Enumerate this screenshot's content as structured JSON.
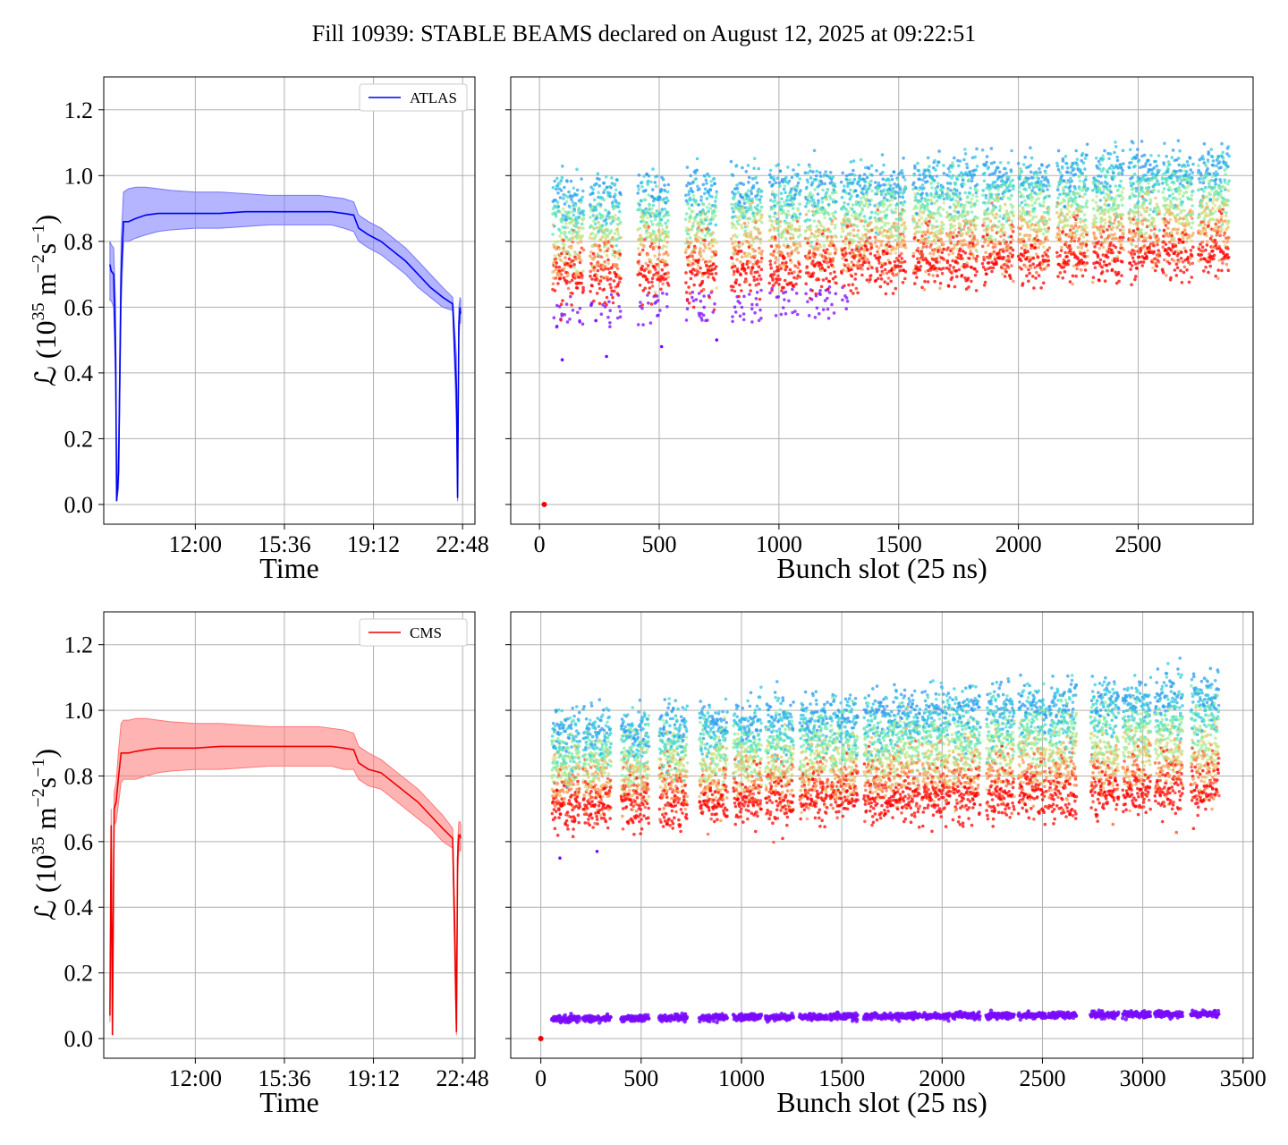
{
  "figure_title": "Fill 10939: STABLE BEAMS declared on August 12, 2025 at 09:22:51",
  "ylabel_main": "ℒ (10",
  "ylabel_exp1": "35",
  "ylabel_mid": " m",
  "ylabel_exp2": "−2",
  "ylabel_mid2": "s",
  "ylabel_exp3": "−1",
  "ylabel_end": ")",
  "colors": {
    "atlas": "#0000ee",
    "atlas_band": "#7777ff",
    "cms": "#ee0000",
    "cms_band": "#ff7777"
  },
  "chart_data": [
    {
      "id": "atlas-time",
      "type": "line",
      "legend": "ATLAS",
      "xlabel": "Time",
      "xticks": [
        "12:00",
        "15:36",
        "19:12",
        "22:48"
      ],
      "xtick_hours": [
        12.0,
        15.6,
        19.2,
        22.8
      ],
      "xlim_hours": [
        8.3,
        23.3
      ],
      "yticks": [
        "0.0",
        "0.2",
        "0.4",
        "0.6",
        "0.8",
        "1.0",
        "1.2"
      ],
      "ylim": [
        -0.06,
        1.3
      ],
      "series": [
        {
          "name": "mean",
          "x": [
            8.55,
            8.6,
            8.7,
            8.78,
            8.82,
            8.9,
            9.0,
            9.1,
            9.3,
            9.6,
            10.0,
            10.5,
            11.0,
            12.0,
            13.0,
            14.0,
            15.0,
            16.0,
            17.0,
            17.5,
            18.0,
            18.4,
            18.6,
            19.0,
            19.5,
            20.0,
            20.5,
            21.0,
            21.5,
            22.0,
            22.4,
            22.55,
            22.6,
            22.65,
            22.7,
            22.72
          ],
          "y": [
            0.73,
            0.71,
            0.7,
            0.45,
            0.01,
            0.1,
            0.7,
            0.86,
            0.86,
            0.87,
            0.88,
            0.885,
            0.885,
            0.885,
            0.885,
            0.89,
            0.89,
            0.89,
            0.89,
            0.89,
            0.885,
            0.88,
            0.84,
            0.82,
            0.8,
            0.77,
            0.74,
            0.7,
            0.66,
            0.63,
            0.61,
            0.35,
            0.02,
            0.55,
            0.6,
            0.58
          ]
        },
        {
          "name": "upper",
          "y": [
            0.8,
            0.79,
            0.78,
            0.6,
            0.02,
            0.2,
            0.8,
            0.95,
            0.96,
            0.965,
            0.965,
            0.96,
            0.955,
            0.95,
            0.95,
            0.945,
            0.94,
            0.94,
            0.94,
            0.935,
            0.93,
            0.92,
            0.88,
            0.86,
            0.84,
            0.81,
            0.78,
            0.74,
            0.7,
            0.66,
            0.63,
            0.45,
            0.03,
            0.6,
            0.63,
            0.62
          ]
        },
        {
          "name": "lower",
          "y": [
            0.62,
            0.62,
            0.6,
            0.35,
            0.01,
            0.05,
            0.6,
            0.8,
            0.8,
            0.81,
            0.82,
            0.83,
            0.835,
            0.84,
            0.84,
            0.845,
            0.85,
            0.85,
            0.85,
            0.85,
            0.84,
            0.83,
            0.8,
            0.78,
            0.76,
            0.73,
            0.7,
            0.66,
            0.63,
            0.6,
            0.59,
            0.25,
            0.01,
            0.5,
            0.57,
            0.55
          ]
        }
      ]
    },
    {
      "id": "atlas-bunch",
      "type": "scatter",
      "xlabel": "Bunch slot (25 ns)",
      "xticks": [
        0,
        500,
        1000,
        1500,
        2000,
        2500
      ],
      "xlim": [
        -120,
        2980
      ],
      "yticks": [
        "0.0",
        "0.2",
        "0.4",
        "0.6",
        "0.8",
        "1.0",
        "1.2"
      ],
      "ylim": [
        -0.06,
        1.3
      ],
      "trains_start": [
        55,
        210,
        410,
        610,
        800,
        960,
        1110,
        1260,
        1400,
        1560,
        1700,
        1850,
        2000,
        2160,
        2310,
        2460,
        2600,
        2750
      ],
      "train_length": 130,
      "band_low_start": 0.68,
      "band_low_end": 0.76,
      "band_high_start": 0.93,
      "band_high_end": 1.03,
      "outlier_low": [
        0.44,
        0.45,
        0.48,
        0.5
      ],
      "origin_point": [
        20,
        0.0
      ]
    },
    {
      "id": "cms-time",
      "type": "line",
      "legend": "CMS",
      "xlabel": "Time",
      "xticks": [
        "12:00",
        "15:36",
        "19:12",
        "22:48"
      ],
      "xtick_hours": [
        12.0,
        15.6,
        19.2,
        22.8
      ],
      "xlim_hours": [
        8.3,
        23.3
      ],
      "yticks": [
        "0.0",
        "0.2",
        "0.4",
        "0.6",
        "0.8",
        "1.0",
        "1.2"
      ],
      "ylim": [
        -0.06,
        1.3
      ],
      "series": [
        {
          "name": "mean",
          "x": [
            8.55,
            8.6,
            8.65,
            8.72,
            8.8,
            8.9,
            9.0,
            9.1,
            9.3,
            9.6,
            10.0,
            10.5,
            11.0,
            12.0,
            13.0,
            14.0,
            15.0,
            16.0,
            17.0,
            17.5,
            18.0,
            18.4,
            18.6,
            19.0,
            19.5,
            20.0,
            20.5,
            21.0,
            21.5,
            22.0,
            22.4,
            22.5,
            22.55,
            22.6,
            22.65,
            22.7,
            22.72
          ],
          "y": [
            0.07,
            0.65,
            0.01,
            0.7,
            0.72,
            0.8,
            0.87,
            0.87,
            0.87,
            0.875,
            0.88,
            0.885,
            0.885,
            0.885,
            0.89,
            0.89,
            0.89,
            0.89,
            0.89,
            0.89,
            0.885,
            0.88,
            0.84,
            0.82,
            0.81,
            0.78,
            0.75,
            0.72,
            0.68,
            0.64,
            0.61,
            0.25,
            0.02,
            0.55,
            0.62,
            0.62,
            0.61
          ]
        },
        {
          "name": "upper",
          "y": [
            0.1,
            0.7,
            0.02,
            0.75,
            0.78,
            0.88,
            0.96,
            0.97,
            0.97,
            0.975,
            0.975,
            0.97,
            0.965,
            0.96,
            0.96,
            0.955,
            0.95,
            0.95,
            0.95,
            0.945,
            0.94,
            0.93,
            0.89,
            0.87,
            0.85,
            0.82,
            0.79,
            0.76,
            0.72,
            0.68,
            0.64,
            0.35,
            0.03,
            0.6,
            0.66,
            0.66,
            0.65
          ]
        },
        {
          "name": "lower",
          "y": [
            0.05,
            0.6,
            0.01,
            0.65,
            0.66,
            0.72,
            0.78,
            0.79,
            0.79,
            0.79,
            0.8,
            0.81,
            0.815,
            0.82,
            0.82,
            0.825,
            0.83,
            0.83,
            0.83,
            0.83,
            0.82,
            0.82,
            0.79,
            0.77,
            0.76,
            0.73,
            0.7,
            0.67,
            0.64,
            0.6,
            0.58,
            0.15,
            0.01,
            0.5,
            0.57,
            0.58,
            0.57
          ]
        }
      ]
    },
    {
      "id": "cms-bunch",
      "type": "scatter",
      "xlabel": "Bunch slot (25 ns)",
      "xticks": [
        0,
        500,
        1000,
        1500,
        2000,
        2500,
        3000,
        3500
      ],
      "xlim": [
        -150,
        3550
      ],
      "yticks": [
        "0.0",
        "0.2",
        "0.4",
        "0.6",
        "0.8",
        "1.0",
        "1.2"
      ],
      "ylim": [
        -0.06,
        1.3
      ],
      "trains_start": [
        55,
        210,
        400,
        590,
        790,
        960,
        1120,
        1290,
        1440,
        1610,
        1750,
        1900,
        2050,
        2220,
        2380,
        2530,
        2740,
        2900,
        3060,
        3240
      ],
      "train_length": 140,
      "band_low_start": 0.7,
      "band_low_end": 0.75,
      "band_high_start": 0.93,
      "band_high_end": 1.05,
      "low_band_level": 0.06,
      "low_band_level_end": 0.075,
      "outlier_low": [
        0.55,
        0.57
      ],
      "origin_point": [
        0,
        0.0
      ]
    }
  ]
}
